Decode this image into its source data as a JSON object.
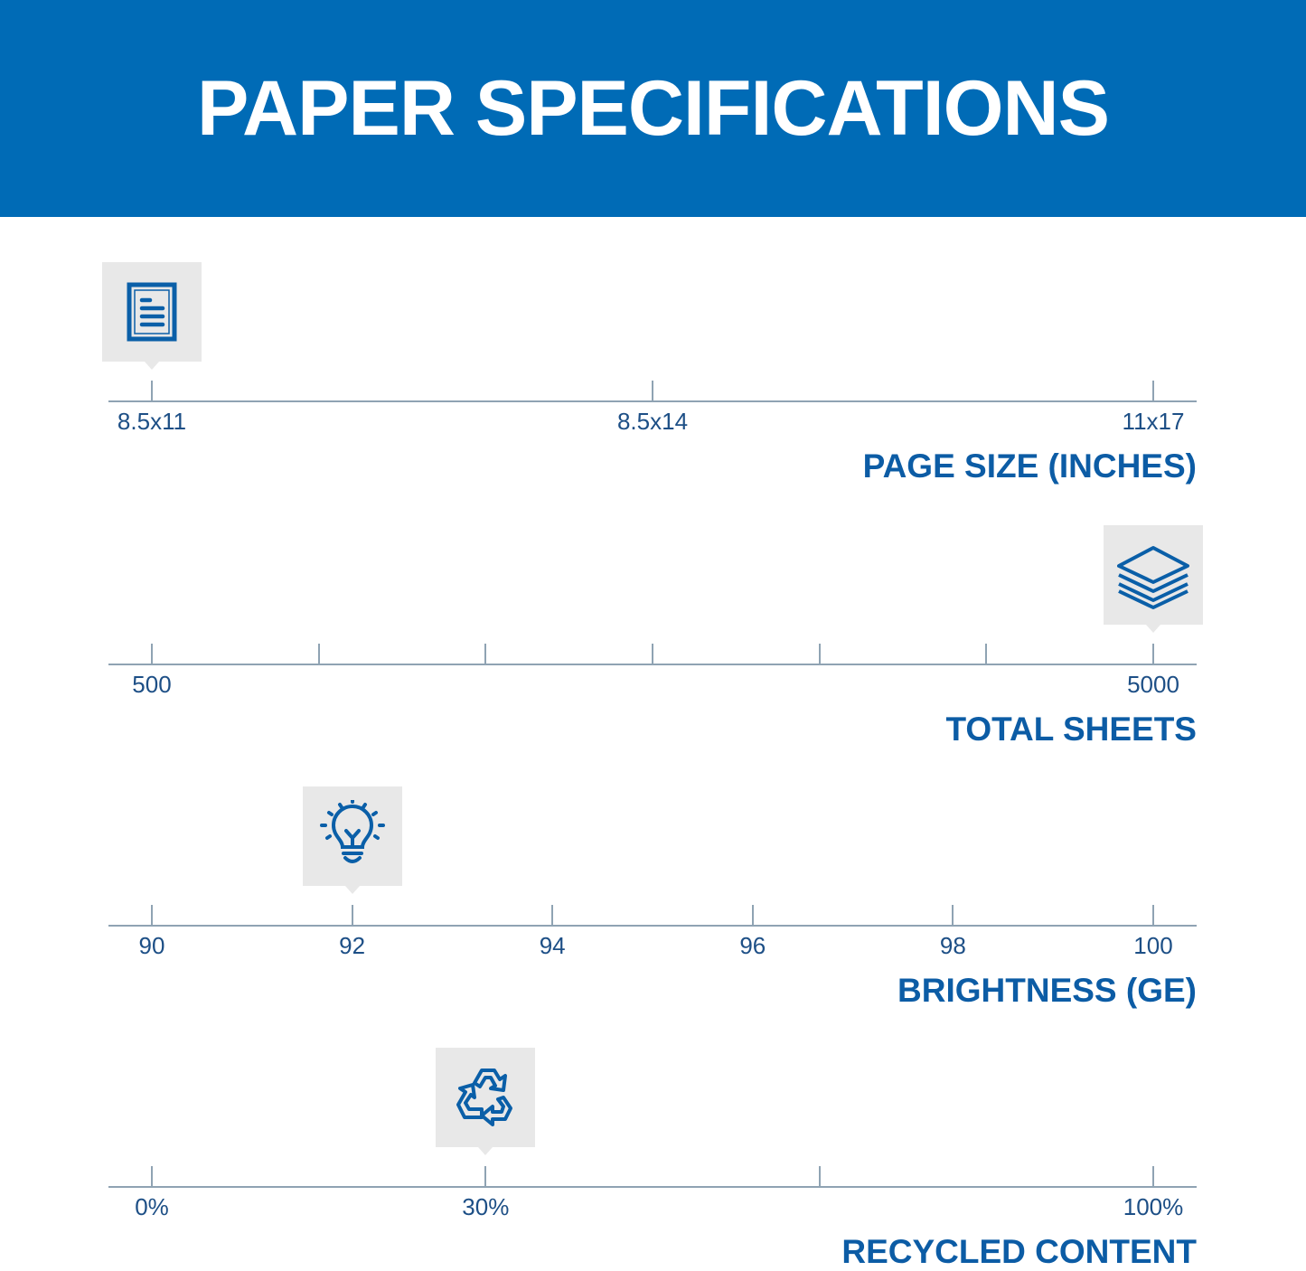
{
  "header": {
    "title": "PAPER SPECIFICATIONS",
    "background": "#006bb6"
  },
  "accent_color": "#0c5ca5",
  "scales": [
    {
      "title": "PAGE SIZE (INCHES)",
      "ticks": [
        "8.5x11",
        "8.5x14",
        "11x17"
      ],
      "selected_index": 0,
      "icon": "document-icon"
    },
    {
      "title": "TOTAL SHEETS",
      "ticks": [
        "500",
        "",
        "",
        "",
        "",
        "",
        "5000"
      ],
      "selected_index": 6,
      "icon": "paper-stack-icon"
    },
    {
      "title": "BRIGHTNESS (GE)",
      "ticks": [
        "90",
        "92",
        "94",
        "96",
        "98",
        "100"
      ],
      "selected_index": 1,
      "icon": "lightbulb-icon"
    },
    {
      "title": "RECYCLED CONTENT",
      "ticks": [
        "0%",
        "30%",
        "",
        "100%"
      ],
      "selected_index": 1,
      "icon": "recycle-icon"
    }
  ]
}
